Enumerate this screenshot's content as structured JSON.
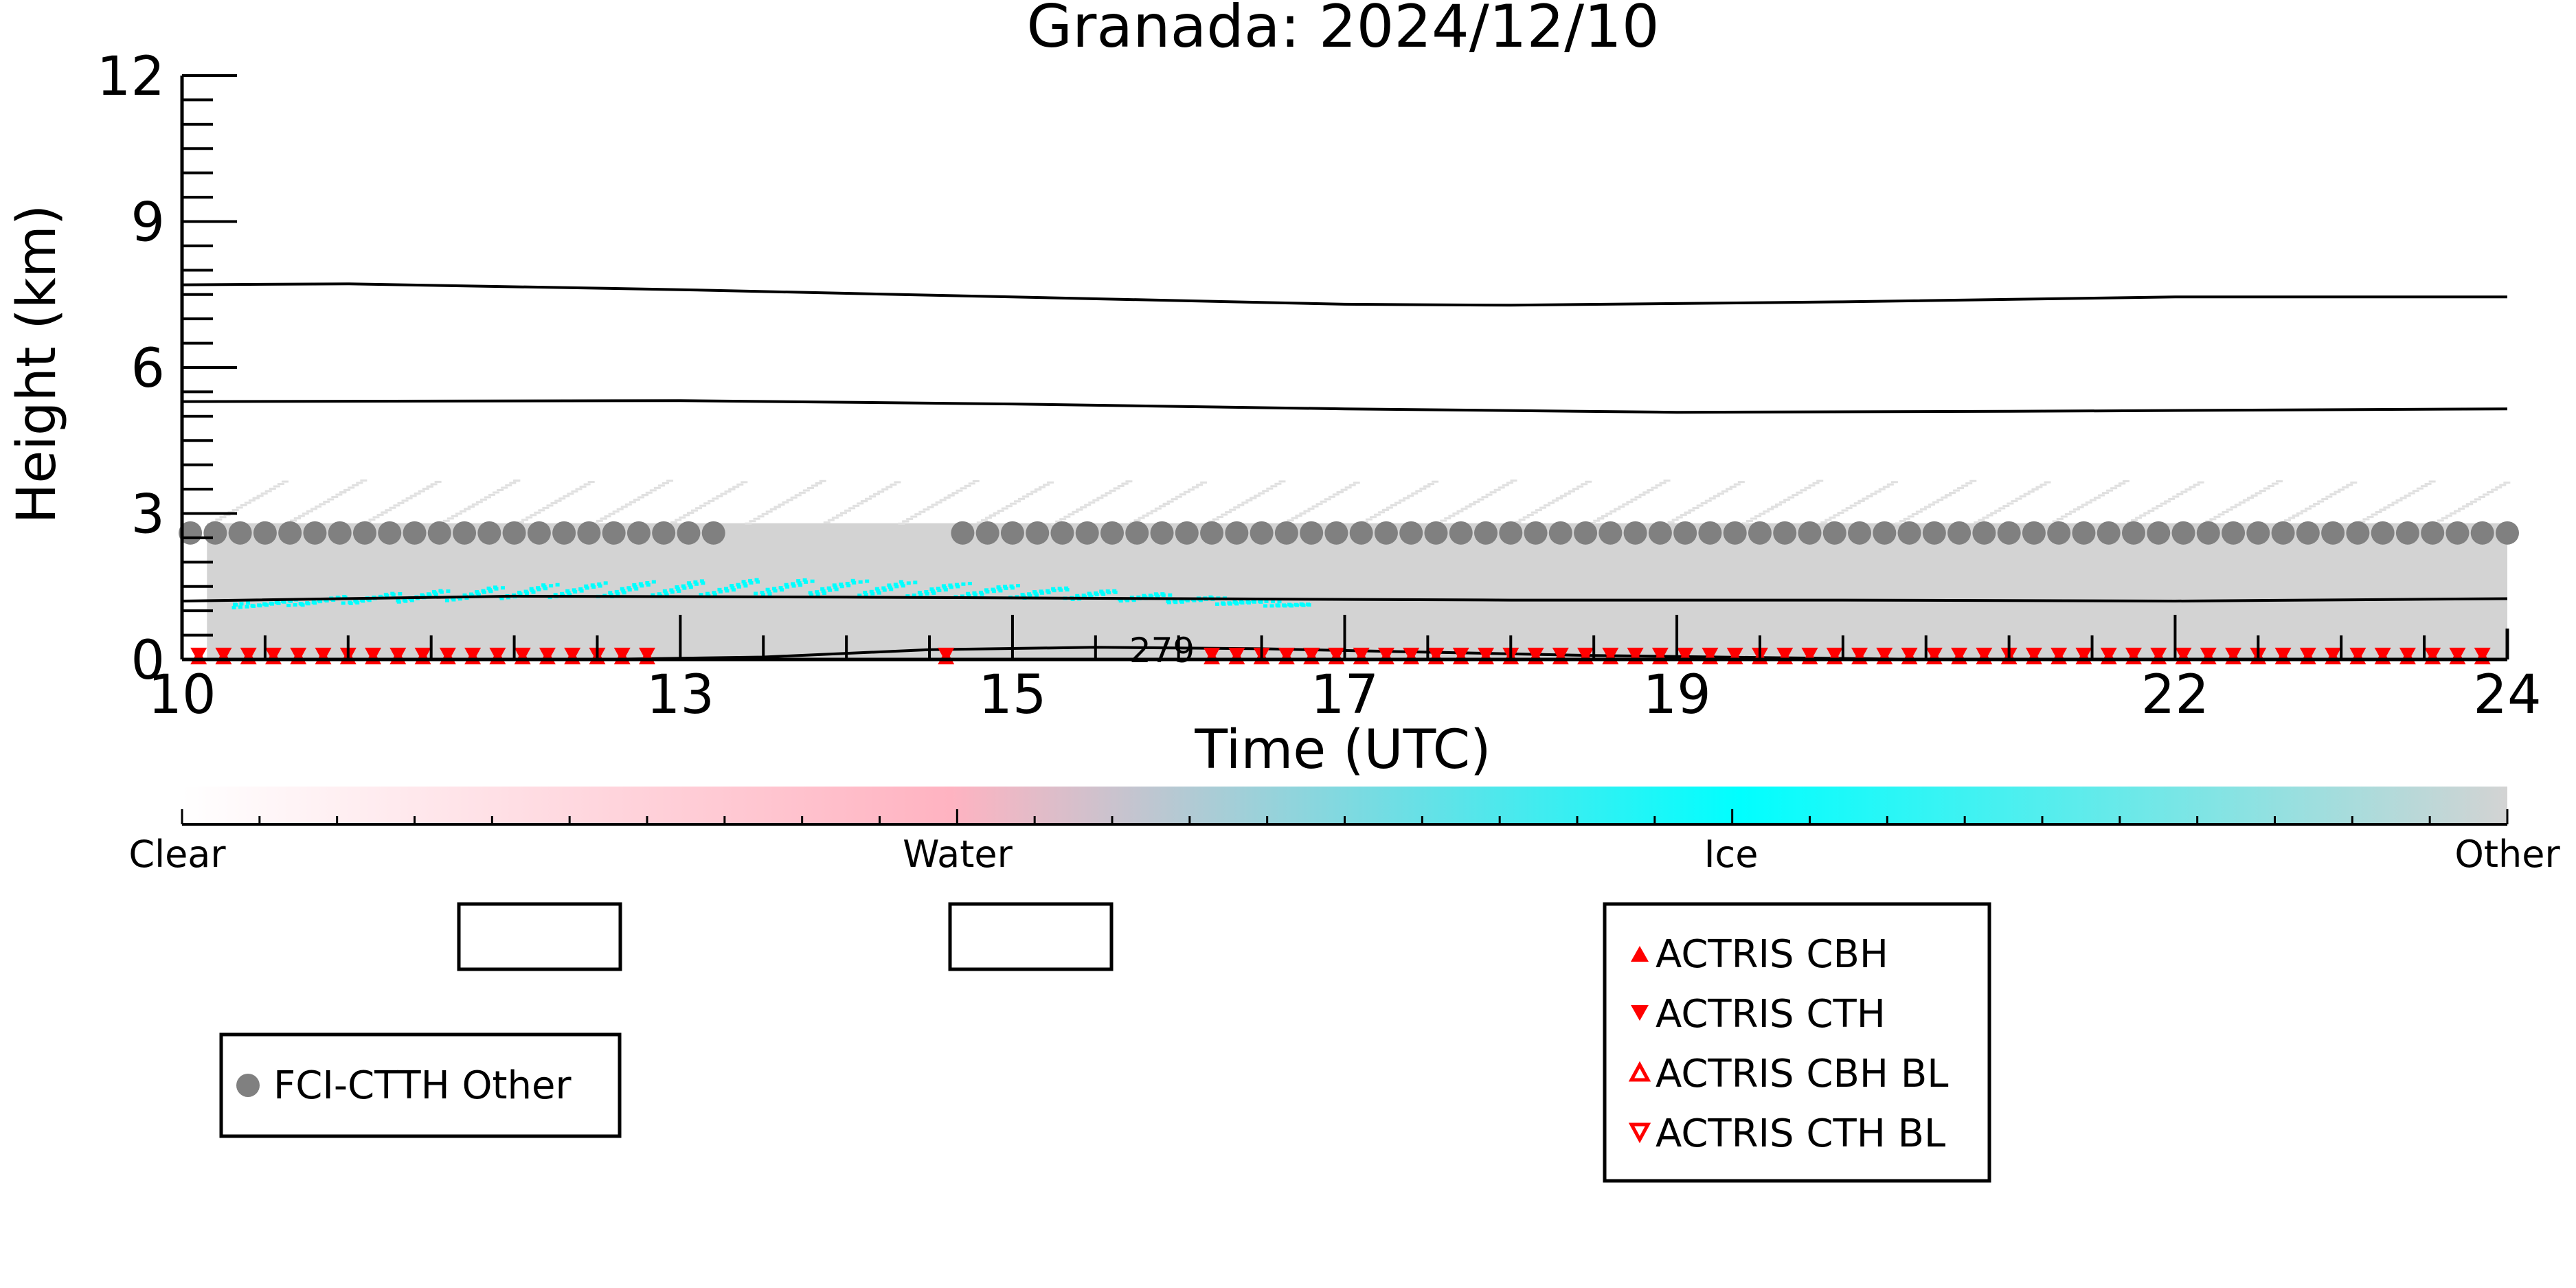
{
  "chart_data": {
    "type": "scatter",
    "title": "Granada: 2024/12/10",
    "xlabel": "Time (UTC)",
    "ylabel": "Height (km)",
    "xlim": [
      10,
      24
    ],
    "ylim": [
      0,
      12
    ],
    "x_ticks": [
      10,
      13,
      15,
      17,
      19,
      22,
      24
    ],
    "y_ticks": [
      0,
      3,
      6,
      9,
      12
    ],
    "grid": false,
    "contours": [
      {
        "label": "",
        "points": [
          [
            10,
            7.7
          ],
          [
            11,
            7.72
          ],
          [
            13,
            7.6
          ],
          [
            15,
            7.45
          ],
          [
            17,
            7.3
          ],
          [
            18,
            7.28
          ],
          [
            20,
            7.35
          ],
          [
            22,
            7.45
          ],
          [
            24,
            7.45
          ]
        ]
      },
      {
        "label": "",
        "points": [
          [
            10,
            5.3
          ],
          [
            13,
            5.32
          ],
          [
            15,
            5.25
          ],
          [
            17,
            5.15
          ],
          [
            19,
            5.08
          ],
          [
            21,
            5.1
          ],
          [
            24,
            5.15
          ]
        ]
      },
      {
        "label": "",
        "points": [
          [
            10,
            1.2
          ],
          [
            12,
            1.3
          ],
          [
            14,
            1.28
          ],
          [
            16,
            1.25
          ],
          [
            18,
            1.22
          ],
          [
            20,
            1.22
          ],
          [
            22,
            1.2
          ],
          [
            24,
            1.25
          ]
        ]
      },
      {
        "label": "279",
        "points": [
          [
            12.5,
            0
          ],
          [
            13.5,
            0.05
          ],
          [
            14.5,
            0.2
          ],
          [
            15.5,
            0.25
          ],
          [
            16.5,
            0.22
          ],
          [
            17.5,
            0.15
          ],
          [
            18.5,
            0.08
          ],
          [
            19.5,
            0.04
          ],
          [
            20.5,
            0
          ]
        ]
      }
    ],
    "background_cloud": {
      "class": "Other",
      "time_range": [
        10.15,
        24
      ],
      "height_range": [
        0,
        2.8
      ]
    },
    "ice_cloud": {
      "class": "Ice",
      "time_range": [
        10.3,
        16.8
      ],
      "height_range": [
        1.1,
        1.65
      ]
    },
    "series": [
      {
        "name": "FCI-CTTH Other",
        "marker": "circle",
        "color": "#808080",
        "y": 2.6,
        "x": [
          10.05,
          10.2,
          10.35,
          10.5,
          10.65,
          10.8,
          10.95,
          11.1,
          11.25,
          11.4,
          11.55,
          11.7,
          11.85,
          12.0,
          12.15,
          12.3,
          12.45,
          12.6,
          12.75,
          12.9,
          13.05,
          13.2,
          14.7,
          14.85,
          15.0,
          15.15,
          15.3,
          15.45,
          15.6,
          15.75,
          15.9,
          16.05,
          16.2,
          16.35,
          16.5,
          16.65,
          16.8,
          16.95,
          17.1,
          17.25,
          17.4,
          17.55,
          17.7,
          17.85,
          18.0,
          18.15,
          18.3,
          18.45,
          18.6,
          18.75,
          18.9,
          19.05,
          19.2,
          19.35,
          19.5,
          19.65,
          19.8,
          19.95,
          20.1,
          20.25,
          20.4,
          20.55,
          20.7,
          20.85,
          21.0,
          21.15,
          21.3,
          21.45,
          21.6,
          21.75,
          21.9,
          22.05,
          22.2,
          22.35,
          22.5,
          22.65,
          22.8,
          22.95,
          23.1,
          23.25,
          23.4,
          23.55,
          23.7,
          23.85,
          24.0
        ]
      },
      {
        "name": "ACTRIS CBH",
        "marker": "triangle-up",
        "color": "#ff0000",
        "y": 0.04,
        "x": [
          10.1,
          10.25,
          10.4,
          10.55,
          10.7,
          10.85,
          11.0,
          11.15,
          11.3,
          11.45,
          11.6,
          11.75,
          11.9,
          12.05,
          12.2,
          12.35,
          12.5,
          12.65,
          12.8,
          14.6,
          16.2,
          16.35,
          16.5,
          16.65,
          16.8,
          16.95,
          17.1,
          17.25,
          17.4,
          17.55,
          17.7,
          17.85,
          18.0,
          18.15,
          18.3,
          18.45,
          18.6,
          18.75,
          18.9,
          19.05,
          19.2,
          19.35,
          19.5,
          19.65,
          19.8,
          19.95,
          20.1,
          20.25,
          20.4,
          20.55,
          20.7,
          20.85,
          21.0,
          21.15,
          21.3,
          21.45,
          21.6,
          21.75,
          21.9,
          22.05,
          22.2,
          22.35,
          22.5,
          22.65,
          22.8,
          22.95,
          23.1,
          23.25,
          23.4,
          23.55,
          23.7,
          23.85
        ]
      },
      {
        "name": "ACTRIS CTH",
        "marker": "triangle-down",
        "color": "#ff0000",
        "y": 0.1,
        "x": [
          10.1,
          10.25,
          10.4,
          10.55,
          10.7,
          10.85,
          11.0,
          11.15,
          11.3,
          11.45,
          11.6,
          11.75,
          11.9,
          12.05,
          12.2,
          12.35,
          12.5,
          12.65,
          12.8,
          14.6,
          16.2,
          16.35,
          16.5,
          16.65,
          16.8,
          16.95,
          17.1,
          17.25,
          17.4,
          17.55,
          17.7,
          17.85,
          18.0,
          18.15,
          18.3,
          18.45,
          18.6,
          18.75,
          18.9,
          19.05,
          19.2,
          19.35,
          19.5,
          19.65,
          19.8,
          19.95,
          20.1,
          20.25,
          20.4,
          20.55,
          20.7,
          20.85,
          21.0,
          21.15,
          21.3,
          21.45,
          21.6,
          21.75,
          21.9,
          22.05,
          22.2,
          22.35,
          22.5,
          22.65,
          22.8,
          22.95,
          23.1,
          23.25,
          23.4,
          23.55,
          23.7,
          23.85
        ]
      },
      {
        "name": "ACTRIS CBH BL",
        "marker": "triangle-up-open",
        "color": "#ff0000",
        "x": [],
        "y": 0
      },
      {
        "name": "ACTRIS CTH BL",
        "marker": "triangle-down-open",
        "color": "#ff0000",
        "x": [],
        "y": 0
      }
    ],
    "colorbar": {
      "labels": [
        "Clear",
        "Water",
        "Ice",
        "Other"
      ],
      "colors": [
        "#ffffff",
        "#ffb3c1",
        "#00ffff",
        "#d3d3d3"
      ]
    },
    "legend_boxes": [
      {
        "entries": []
      },
      {
        "entries": []
      },
      {
        "entries": [
          "FCI-CTTH Other"
        ]
      },
      {
        "entries": [
          "ACTRIS CBH",
          "ACTRIS CTH",
          "ACTRIS CBH BL",
          "ACTRIS CTH BL"
        ]
      }
    ]
  }
}
